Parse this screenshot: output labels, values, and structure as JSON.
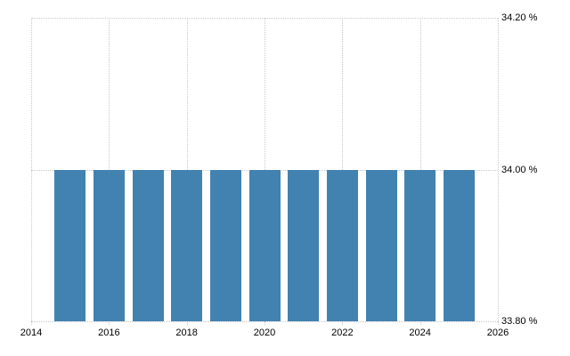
{
  "chart": {
    "background": "#ffffff",
    "text_color": "#000000"
  },
  "chart_data": {
    "type": "bar",
    "title": "",
    "xlabel": "",
    "ylabel": "",
    "categories": [
      2015,
      2016,
      2017,
      2018,
      2019,
      2020,
      2021,
      2022,
      2023,
      2024,
      2025
    ],
    "values": [
      34.0,
      34.0,
      34.0,
      34.0,
      34.0,
      34.0,
      34.0,
      34.0,
      34.0,
      34.0,
      34.0
    ],
    "unit": "%",
    "xlim": [
      2014,
      2026
    ],
    "ylim": [
      33.8,
      34.2
    ],
    "x_ticks": [
      2014,
      2016,
      2018,
      2020,
      2022,
      2024,
      2026
    ],
    "x_tick_labels": [
      "2014",
      "2016",
      "2018",
      "2020",
      "2022",
      "2024",
      "2026"
    ],
    "y_ticks": [
      33.8,
      34.0,
      34.2
    ],
    "y_tick_labels": [
      "33.80 %",
      "34.00 %",
      "34.20 %"
    ],
    "grid": "dotted",
    "grid_color": "#c9c9c9",
    "bar_color": "#4282b1",
    "legend": "none"
  }
}
